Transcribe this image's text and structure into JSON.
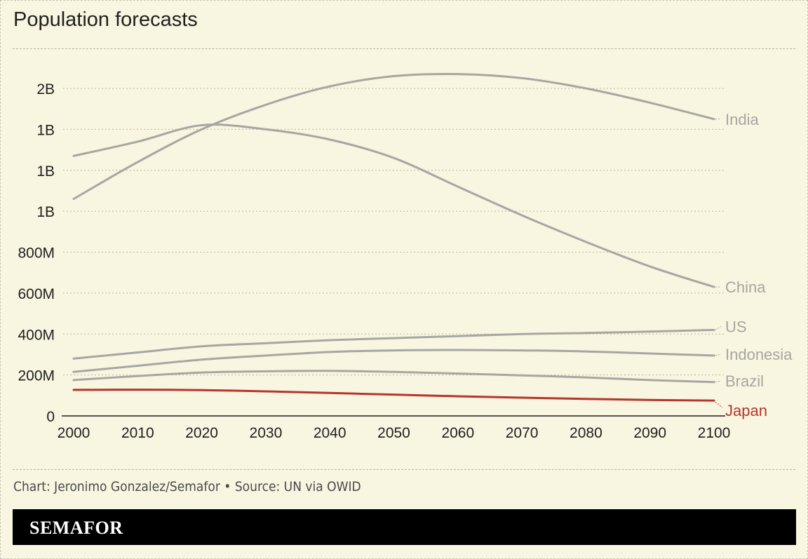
{
  "header": {
    "title": "Population forecasts"
  },
  "footer": {
    "credit": "Chart: Jeronimo Gonzalez/Semafor • Source: UN via OWID",
    "brand": "SEMAFOR"
  },
  "colors": {
    "background": "#f8f5e0",
    "series_default": "#a8a6a3",
    "series_highlight": "#b5362a",
    "gridline": "#b8b5a3",
    "text": "#1f1f1f"
  },
  "chart_data": {
    "type": "line",
    "title": "Population forecasts",
    "xlabel": "",
    "ylabel": "",
    "xlim": [
      2000,
      2100
    ],
    "ylim": [
      0,
      2000000000
    ],
    "x_ticks": [
      2000,
      2010,
      2020,
      2030,
      2040,
      2050,
      2060,
      2070,
      2080,
      2090,
      2100
    ],
    "x_tick_labels": [
      "2000",
      "2010",
      "2020",
      "2030",
      "2040",
      "2050",
      "2060",
      "2070",
      "2080",
      "2090",
      "2100"
    ],
    "y_ticks": [
      0,
      200000000,
      400000000,
      600000000,
      800000000,
      1000000000,
      1200000000,
      1400000000,
      1600000000
    ],
    "y_tick_labels": [
      "0",
      "200M",
      "400M",
      "600M",
      "800M",
      "1B",
      "1B",
      "1B",
      "2B"
    ],
    "grid": true,
    "legend": "direct labels at line ends",
    "x": [
      2000,
      2010,
      2020,
      2030,
      2040,
      2050,
      2060,
      2070,
      2080,
      2090,
      2100
    ],
    "series": [
      {
        "name": "India",
        "color": "#a8a6a3",
        "values": [
          1060000000,
          1240000000,
          1400000000,
          1520000000,
          1610000000,
          1660000000,
          1670000000,
          1650000000,
          1600000000,
          1530000000,
          1450000000
        ]
      },
      {
        "name": "China",
        "color": "#a8a6a3",
        "values": [
          1270000000,
          1340000000,
          1420000000,
          1400000000,
          1350000000,
          1260000000,
          1120000000,
          980000000,
          850000000,
          730000000,
          630000000
        ]
      },
      {
        "name": "US",
        "color": "#a8a6a3",
        "values": [
          280000000,
          310000000,
          340000000,
          355000000,
          370000000,
          380000000,
          390000000,
          400000000,
          405000000,
          412000000,
          420000000
        ]
      },
      {
        "name": "Indonesia",
        "color": "#a8a6a3",
        "values": [
          215000000,
          245000000,
          275000000,
          295000000,
          312000000,
          320000000,
          322000000,
          320000000,
          315000000,
          305000000,
          295000000
        ]
      },
      {
        "name": "Brazil",
        "color": "#a8a6a3",
        "values": [
          175000000,
          195000000,
          212000000,
          218000000,
          220000000,
          215000000,
          207000000,
          198000000,
          188000000,
          175000000,
          165000000
        ]
      },
      {
        "name": "Japan",
        "color": "#b5362a",
        "values": [
          127000000,
          128000000,
          126000000,
          120000000,
          112000000,
          104000000,
          96000000,
          89000000,
          83000000,
          78000000,
          75000000
        ]
      }
    ]
  }
}
